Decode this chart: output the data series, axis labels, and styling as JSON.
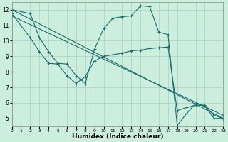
{
  "xlabel": "Humidex (Indice chaleur)",
  "background_color": "#cceedd",
  "grid_color": "#aacccc",
  "line_color": "#1a6b6b",
  "xlim": [
    0,
    23
  ],
  "ylim": [
    4.5,
    12.5
  ],
  "xticks": [
    0,
    1,
    2,
    3,
    4,
    5,
    6,
    7,
    8,
    9,
    10,
    11,
    12,
    13,
    14,
    15,
    16,
    17,
    18,
    19,
    20,
    21,
    22,
    23
  ],
  "yticks": [
    5,
    6,
    7,
    8,
    9,
    10,
    11,
    12
  ],
  "series": [
    {
      "x": [
        0,
        2,
        3,
        4,
        5,
        6,
        7,
        8,
        9,
        10,
        11,
        12,
        13,
        14,
        15,
        16,
        17,
        18,
        19,
        20,
        21,
        22,
        23
      ],
      "y": [
        12.0,
        11.75,
        10.2,
        9.3,
        8.55,
        8.5,
        7.75,
        7.25,
        9.45,
        10.8,
        11.45,
        11.55,
        11.6,
        12.25,
        12.2,
        10.55,
        10.4,
        4.55,
        5.3,
        5.95,
        5.8,
        5.0,
        5.0
      ]
    },
    {
      "x": [
        0,
        2,
        3,
        4,
        5,
        6,
        7,
        8,
        9,
        10,
        11,
        12,
        13,
        14,
        15,
        16,
        17,
        18,
        19,
        20,
        21,
        22,
        23
      ],
      "y": [
        11.75,
        10.2,
        9.3,
        8.55,
        8.5,
        7.75,
        7.25,
        7.7,
        8.7,
        9.0,
        9.1,
        9.2,
        9.35,
        9.4,
        9.5,
        9.55,
        9.6,
        5.5,
        5.7,
        5.85,
        5.85,
        5.2,
        5.0
      ]
    },
    {
      "x": [
        0,
        23
      ],
      "y": [
        12.0,
        5.0
      ]
    },
    {
      "x": [
        0,
        23
      ],
      "y": [
        11.6,
        5.2
      ]
    }
  ]
}
